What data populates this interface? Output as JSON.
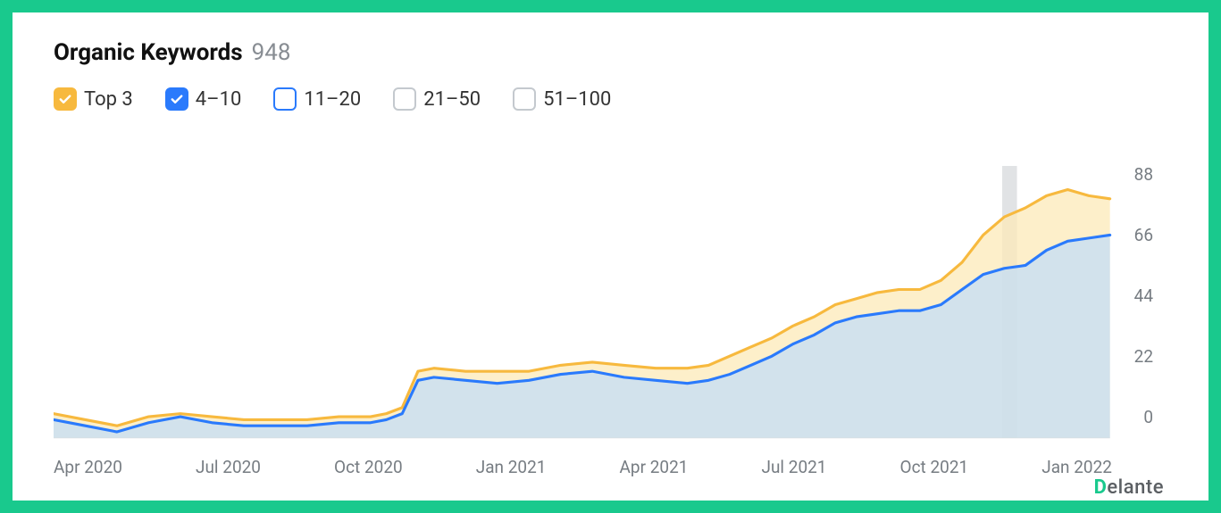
{
  "frame_border_color": "#19c98d",
  "title": "Organic Keywords",
  "count": "948",
  "title_color": "#111111",
  "count_color": "#888d93",
  "legend": [
    {
      "label": "Top 3",
      "checked": true,
      "fill": "#f7b93e",
      "border": "#f7b93e"
    },
    {
      "label": "4–10",
      "checked": true,
      "fill": "#2a7afc",
      "border": "#2a7afc"
    },
    {
      "label": "11–20",
      "checked": false,
      "fill": "#ffffff",
      "border": "#2a7afc"
    },
    {
      "label": "21–50",
      "checked": false,
      "fill": "#ffffff",
      "border": "#c4c9ce"
    },
    {
      "label": "51–100",
      "checked": false,
      "fill": "#ffffff",
      "border": "#c4c9ce"
    }
  ],
  "chart": {
    "type": "area",
    "background_color": "#ffffff",
    "axis_text_color": "#767c82",
    "baseline_color": "#d8dde2",
    "highlight_band": {
      "x_from": 0.898,
      "x_to": 0.912,
      "fill": "#c9ccd0",
      "opacity": 0.55
    },
    "ylim": [
      0,
      88
    ],
    "yticks": [
      88,
      66,
      44,
      22,
      0
    ],
    "xticks": [
      "Apr 2020",
      "Jul 2020",
      "Oct 2020",
      "Jan 2021",
      "Apr 2021",
      "Jul 2021",
      "Oct 2021",
      "Jan 2022"
    ],
    "series": [
      {
        "name": "top3",
        "stroke": "#f7b93e",
        "fill": "#fce9b8",
        "fill_opacity": 0.75,
        "stroke_width": 3,
        "points": [
          [
            0.0,
            8
          ],
          [
            0.03,
            6
          ],
          [
            0.06,
            4
          ],
          [
            0.09,
            7
          ],
          [
            0.12,
            8
          ],
          [
            0.15,
            7
          ],
          [
            0.18,
            6
          ],
          [
            0.21,
            6
          ],
          [
            0.24,
            6
          ],
          [
            0.27,
            7
          ],
          [
            0.3,
            7
          ],
          [
            0.315,
            8
          ],
          [
            0.33,
            10
          ],
          [
            0.345,
            22
          ],
          [
            0.36,
            23
          ],
          [
            0.39,
            22
          ],
          [
            0.42,
            22
          ],
          [
            0.45,
            22
          ],
          [
            0.48,
            24
          ],
          [
            0.51,
            25
          ],
          [
            0.54,
            24
          ],
          [
            0.57,
            23
          ],
          [
            0.6,
            23
          ],
          [
            0.62,
            24
          ],
          [
            0.64,
            27
          ],
          [
            0.66,
            30
          ],
          [
            0.68,
            33
          ],
          [
            0.7,
            37
          ],
          [
            0.72,
            40
          ],
          [
            0.74,
            44
          ],
          [
            0.76,
            46
          ],
          [
            0.78,
            48
          ],
          [
            0.8,
            49
          ],
          [
            0.82,
            49
          ],
          [
            0.84,
            52
          ],
          [
            0.86,
            58
          ],
          [
            0.88,
            67
          ],
          [
            0.9,
            73
          ],
          [
            0.92,
            76
          ],
          [
            0.94,
            80
          ],
          [
            0.96,
            82
          ],
          [
            0.98,
            80
          ],
          [
            1.0,
            79
          ]
        ]
      },
      {
        "name": "4-10",
        "stroke": "#2a7afc",
        "fill": "#c3ddf7",
        "fill_opacity": 0.75,
        "stroke_width": 3,
        "points": [
          [
            0.0,
            6
          ],
          [
            0.03,
            4
          ],
          [
            0.06,
            2
          ],
          [
            0.09,
            5
          ],
          [
            0.12,
            7
          ],
          [
            0.15,
            5
          ],
          [
            0.18,
            4
          ],
          [
            0.21,
            4
          ],
          [
            0.24,
            4
          ],
          [
            0.27,
            5
          ],
          [
            0.3,
            5
          ],
          [
            0.315,
            6
          ],
          [
            0.33,
            8
          ],
          [
            0.345,
            19
          ],
          [
            0.36,
            20
          ],
          [
            0.39,
            19
          ],
          [
            0.42,
            18
          ],
          [
            0.45,
            19
          ],
          [
            0.48,
            21
          ],
          [
            0.51,
            22
          ],
          [
            0.54,
            20
          ],
          [
            0.57,
            19
          ],
          [
            0.6,
            18
          ],
          [
            0.62,
            19
          ],
          [
            0.64,
            21
          ],
          [
            0.66,
            24
          ],
          [
            0.68,
            27
          ],
          [
            0.7,
            31
          ],
          [
            0.72,
            34
          ],
          [
            0.74,
            38
          ],
          [
            0.76,
            40
          ],
          [
            0.78,
            41
          ],
          [
            0.8,
            42
          ],
          [
            0.82,
            42
          ],
          [
            0.84,
            44
          ],
          [
            0.86,
            49
          ],
          [
            0.88,
            54
          ],
          [
            0.9,
            56
          ],
          [
            0.92,
            57
          ],
          [
            0.94,
            62
          ],
          [
            0.96,
            65
          ],
          [
            0.98,
            66
          ],
          [
            1.0,
            67
          ]
        ]
      }
    ]
  },
  "brand": {
    "text_prefix": "D",
    "text_rest": "elante",
    "d_color": "#19c98d",
    "rest_color": "#5b5f63"
  }
}
